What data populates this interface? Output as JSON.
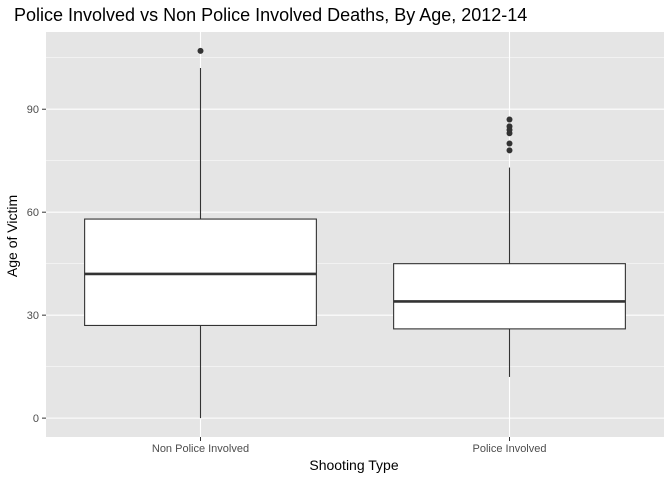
{
  "chart_data": {
    "type": "box",
    "title": "Police Involved vs Non Police Involved Deaths, By Age, 2012-14",
    "xlabel": "Shooting Type",
    "ylabel": "Age of Victim",
    "ylim": [
      -5.5,
      112.5
    ],
    "yticks": [
      0,
      30,
      60,
      90
    ],
    "grid": true,
    "legend": "none",
    "categories": [
      "Non Police Involved",
      "Police Involved"
    ],
    "boxes": [
      {
        "category": "Non Police Involved",
        "min": 0,
        "q1": 27,
        "median": 42,
        "q3": 58,
        "max": 102,
        "outliers": [
          107
        ]
      },
      {
        "category": "Police Involved",
        "min": 12,
        "q1": 26,
        "median": 34,
        "q3": 45,
        "max": 73,
        "outliers": [
          78,
          80,
          83,
          84,
          85,
          87
        ]
      }
    ],
    "colors": {
      "panel": "#e5e5e5",
      "grid_major": "#ffffff",
      "box_fill": "#ffffff",
      "box_line": "#333333",
      "outlier": "#333333"
    }
  }
}
